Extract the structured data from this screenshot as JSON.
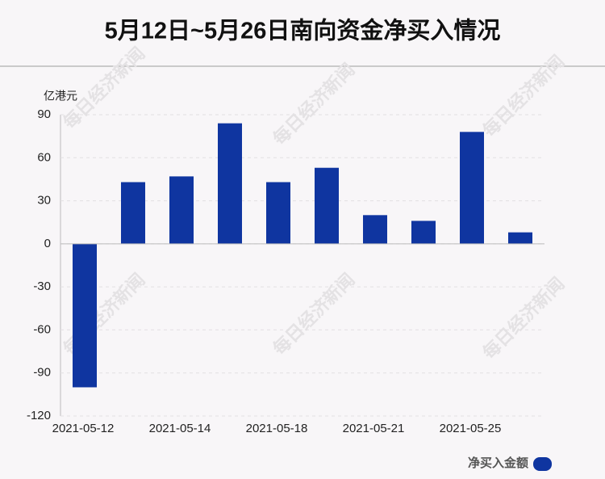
{
  "chart_data": {
    "type": "bar",
    "title": "5月12日~5月26日南向资金净买入情况",
    "y_unit": "亿港元",
    "categories": [
      "2021-05-12",
      null,
      "2021-05-14",
      null,
      "2021-05-18",
      null,
      "2021-05-21",
      null,
      "2021-05-25",
      null
    ],
    "series": [
      {
        "name": "净买入金额",
        "color": "#0f35a0",
        "values": [
          -100,
          43,
          47,
          84,
          43,
          53,
          20,
          16,
          78,
          8
        ]
      }
    ],
    "ylim": [
      -120,
      90
    ],
    "yticks": [
      -120,
      -90,
      -60,
      -30,
      0,
      30,
      60,
      90
    ],
    "grid": true,
    "legend": "bottom-right",
    "watermark": "每日经济新闻"
  }
}
